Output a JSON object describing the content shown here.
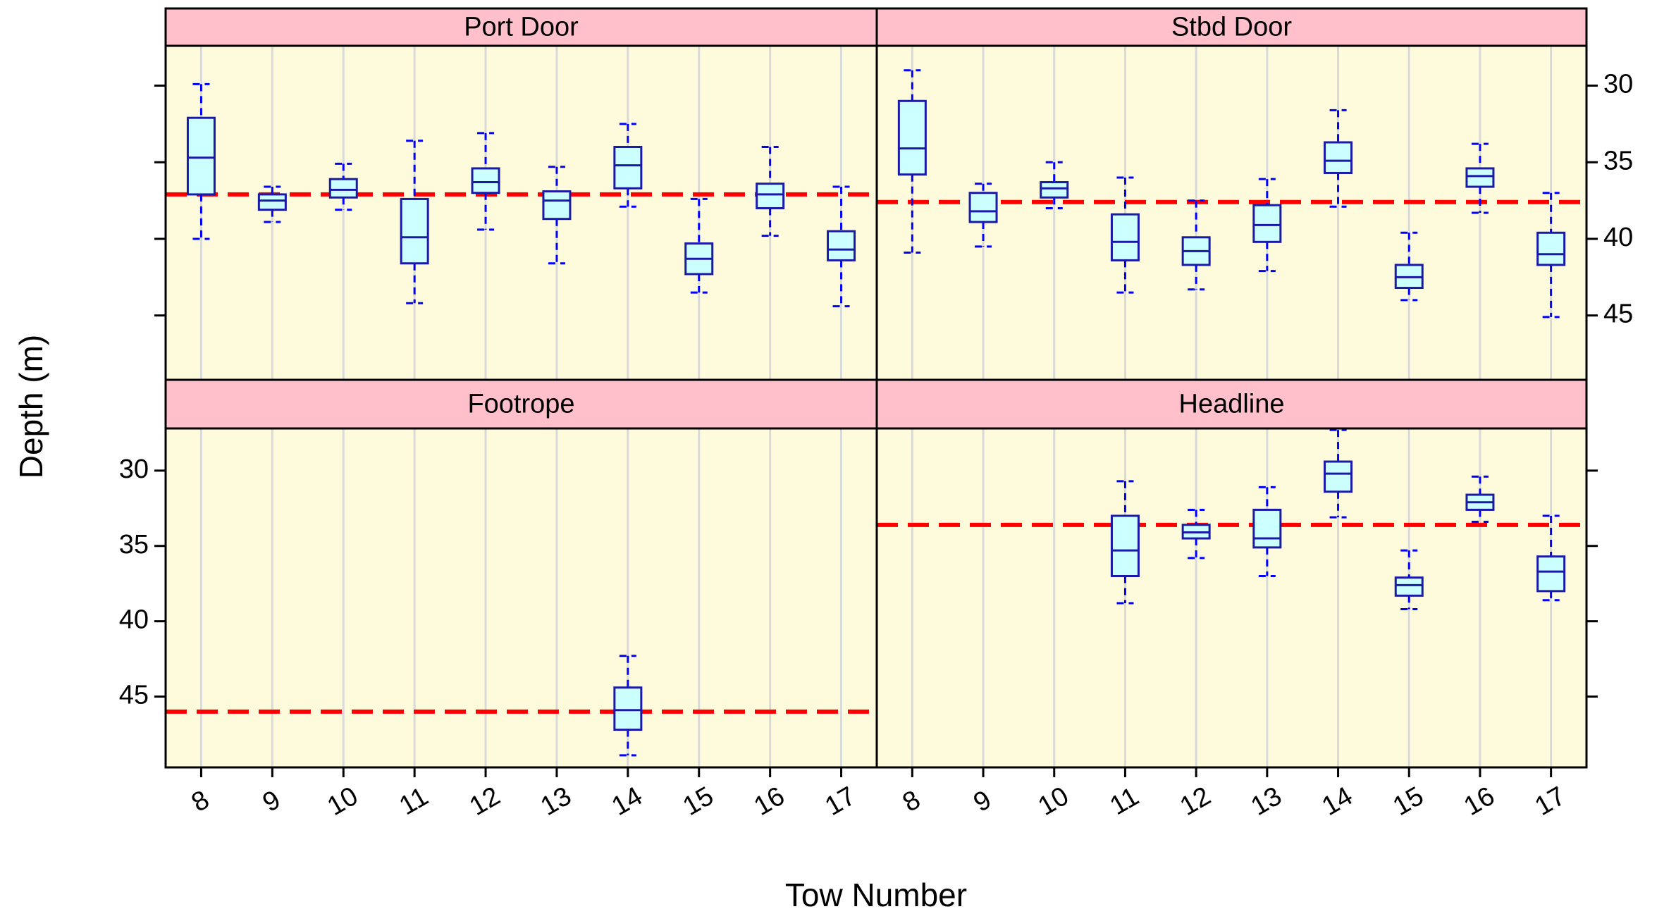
{
  "chart_data": [
    {
      "type": "box",
      "title": "Port Door",
      "categories": [
        8,
        9,
        10,
        11,
        12,
        13,
        14,
        15,
        16,
        17
      ],
      "whishi": [
        29.9,
        36.6,
        35.1,
        33.6,
        33.1,
        35.3,
        32.5,
        37.4,
        34.0,
        36.6
      ],
      "q1": [
        32.1,
        37.1,
        36.1,
        37.4,
        35.4,
        36.9,
        34.0,
        40.3,
        36.4,
        39.5
      ],
      "med": [
        34.7,
        37.5,
        36.8,
        39.9,
        36.3,
        37.5,
        35.2,
        41.3,
        37.1,
        40.7
      ],
      "q3": [
        37.1,
        38.1,
        37.3,
        41.6,
        37.0,
        38.7,
        36.7,
        42.3,
        38.0,
        41.4
      ],
      "whislo": [
        40.0,
        38.9,
        38.1,
        44.2,
        39.4,
        41.6,
        37.9,
        43.5,
        39.8,
        44.4
      ],
      "reference": 37.1,
      "ylim": [
        49.2,
        27.4
      ],
      "yticks": [
        30,
        35,
        40,
        45
      ],
      "box_color": "#ccffff",
      "box_edge": "#1a1aa6",
      "whisker_color": "#0000ff",
      "reference_color": "#ff0000",
      "panel_color": "#fefbdc",
      "strip_color": "#ffc0cb",
      "grid": true
    },
    {
      "type": "box",
      "title": "Stbd Door",
      "categories": [
        8,
        9,
        10,
        11,
        12,
        13,
        14,
        15,
        16,
        17
      ],
      "whishi": [
        29.0,
        36.4,
        35.0,
        36.0,
        37.5,
        36.1,
        31.6,
        39.6,
        33.8,
        37.0
      ],
      "q1": [
        31.0,
        37.0,
        36.3,
        38.4,
        39.9,
        37.8,
        33.7,
        41.7,
        35.4,
        39.6
      ],
      "med": [
        34.1,
        38.2,
        36.7,
        40.2,
        40.8,
        39.1,
        34.9,
        42.5,
        35.9,
        41.0
      ],
      "q3": [
        35.8,
        38.9,
        37.3,
        41.4,
        41.7,
        40.2,
        35.7,
        43.2,
        36.6,
        41.7
      ],
      "whislo": [
        40.9,
        40.5,
        38.0,
        43.5,
        43.3,
        42.1,
        37.9,
        44.0,
        38.3,
        45.1
      ],
      "reference": 37.6,
      "ylim": [
        49.2,
        27.4
      ],
      "yticks": [
        30,
        35,
        40,
        45
      ],
      "box_color": "#ccffff",
      "box_edge": "#1a1aa6",
      "whisker_color": "#0000ff",
      "reference_color": "#ff0000",
      "panel_color": "#fefbdc",
      "strip_color": "#ffc0cb",
      "grid": true
    },
    {
      "type": "box",
      "title": "Footrope",
      "xlabel": "Tow Number",
      "ylabel": "Depth (m)",
      "categories": [
        8,
        9,
        10,
        11,
        12,
        13,
        14,
        15,
        16,
        17
      ],
      "whishi": [
        null,
        null,
        null,
        null,
        null,
        null,
        42.3,
        null,
        null,
        null
      ],
      "q1": [
        null,
        null,
        null,
        null,
        null,
        null,
        44.4,
        null,
        null,
        null
      ],
      "med": [
        null,
        null,
        null,
        null,
        null,
        null,
        45.9,
        null,
        null,
        null
      ],
      "q3": [
        null,
        null,
        null,
        null,
        null,
        null,
        47.2,
        null,
        null,
        null
      ],
      "whislo": [
        null,
        null,
        null,
        null,
        null,
        null,
        48.9,
        null,
        null,
        null
      ],
      "reference": 46.0,
      "ylim": [
        49.7,
        27.2
      ],
      "yticks": [
        30,
        35,
        40,
        45
      ],
      "box_color": "#ccffff",
      "box_edge": "#1a1aa6",
      "whisker_color": "#0000ff",
      "reference_color": "#ff0000",
      "panel_color": "#fefbdc",
      "strip_color": "#ffc0cb",
      "grid": true
    },
    {
      "type": "box",
      "title": "Headline",
      "categories": [
        8,
        9,
        10,
        11,
        12,
        13,
        14,
        15,
        16,
        17
      ],
      "whishi": [
        null,
        null,
        null,
        30.7,
        32.6,
        31.1,
        27.3,
        35.3,
        30.4,
        33.0
      ],
      "q1": [
        null,
        null,
        null,
        33.0,
        33.6,
        32.6,
        29.4,
        37.1,
        31.6,
        35.7
      ],
      "med": [
        null,
        null,
        null,
        35.3,
        34.1,
        34.5,
        30.2,
        37.6,
        32.1,
        36.7
      ],
      "q3": [
        null,
        null,
        null,
        37.0,
        34.5,
        35.1,
        31.4,
        38.3,
        32.6,
        38.0
      ],
      "whislo": [
        null,
        null,
        null,
        38.8,
        35.8,
        37.0,
        33.1,
        39.2,
        33.4,
        38.6
      ],
      "reference": 33.6,
      "ylim": [
        49.7,
        27.2
      ],
      "yticks": [
        30,
        35,
        40,
        45
      ],
      "box_color": "#ccffff",
      "box_edge": "#1a1aa6",
      "whisker_color": "#0000ff",
      "reference_color": "#ff0000",
      "panel_color": "#fefbdc",
      "strip_color": "#ffc0cb",
      "grid": true
    }
  ]
}
